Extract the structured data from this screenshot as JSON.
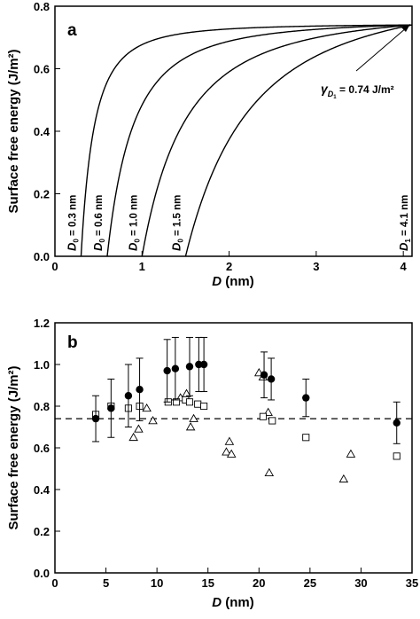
{
  "chart_data": [
    {
      "type": "line",
      "panel_label": "a",
      "xlabel": "D (nm)",
      "xlabel_var": "D",
      "xlabel_unit": " (nm)",
      "ylabel": "Surface free energy (J/m²)",
      "xlim": [
        0,
        4.1
      ],
      "ylim": [
        0,
        0.8
      ],
      "xticks": [
        0,
        1,
        2,
        3,
        4
      ],
      "yticks": [
        0.0,
        0.2,
        0.4,
        0.6,
        0.8
      ],
      "ytick_labels": [
        "0.0",
        "0.2",
        "0.4",
        "0.6",
        "0.8"
      ],
      "grid": false,
      "model": "y = 0.74 * (1 - (D0/D)^2) / (1 - (D0/4.1)^2)",
      "gamma_D1": 0.74,
      "D1": 4.1,
      "series": [
        {
          "D0": 0.3,
          "label_sub": "0",
          "label_text": " = 0.3 nm"
        },
        {
          "D0": 0.6,
          "label_sub": "0",
          "label_text": " = 0.6 nm"
        },
        {
          "D0": 1.0,
          "label_sub": "0",
          "label_text": " = 1.0 nm"
        },
        {
          "D0": 1.5,
          "label_sub": "0",
          "label_text": " = 1.5 nm"
        }
      ],
      "annotations": {
        "gamma_label": " = 0.74 J/m²",
        "gamma_symbol": "γ",
        "gamma_sub": "D",
        "gamma_subsub": "1",
        "d1_label_sub": "1",
        "d1_label_text": " = 4.1 nm"
      }
    },
    {
      "type": "scatter",
      "panel_label": "b",
      "xlabel": "D (nm)",
      "xlabel_var": "D",
      "xlabel_unit": " (nm)",
      "ylabel": "Surface free energy (J/m²)",
      "xlim": [
        0,
        35
      ],
      "ylim": [
        0.0,
        1.2
      ],
      "xticks": [
        0,
        5,
        10,
        15,
        20,
        25,
        30,
        35
      ],
      "xtick_labels": [
        "0",
        "5",
        "10",
        "15",
        "20",
        "25",
        "30",
        "35"
      ],
      "yticks": [
        0.0,
        0.2,
        0.4,
        0.6,
        0.8,
        1.0,
        1.2
      ],
      "ytick_labels": [
        "0.0",
        "0.2",
        "0.4",
        "0.6",
        "0.8",
        "1.0",
        "1.2"
      ],
      "grid": false,
      "reference_line_y": 0.74,
      "series": [
        {
          "marker": "filled-circle",
          "points": [
            {
              "x": 4.0,
              "y": 0.74,
              "err": 0.11
            },
            {
              "x": 5.5,
              "y": 0.79,
              "err": 0.14
            },
            {
              "x": 7.2,
              "y": 0.85,
              "err": 0.15
            },
            {
              "x": 8.3,
              "y": 0.88,
              "err": 0.15
            },
            {
              "x": 11.0,
              "y": 0.97,
              "err": 0.15
            },
            {
              "x": 11.8,
              "y": 0.98,
              "err": 0.15
            },
            {
              "x": 13.2,
              "y": 0.99,
              "err": 0.14
            },
            {
              "x": 14.1,
              "y": 1.0,
              "err": 0.13
            },
            {
              "x": 14.6,
              "y": 1.0,
              "err": 0.13
            },
            {
              "x": 20.5,
              "y": 0.95,
              "err": 0.11
            },
            {
              "x": 21.2,
              "y": 0.93,
              "err": 0.1
            },
            {
              "x": 24.6,
              "y": 0.84,
              "err": 0.09
            },
            {
              "x": 33.5,
              "y": 0.72,
              "err": 0.1
            }
          ]
        },
        {
          "marker": "open-square",
          "points": [
            {
              "x": 4.0,
              "y": 0.76
            },
            {
              "x": 5.5,
              "y": 0.8
            },
            {
              "x": 7.2,
              "y": 0.79
            },
            {
              "x": 8.3,
              "y": 0.8
            },
            {
              "x": 11.1,
              "y": 0.82
            },
            {
              "x": 11.9,
              "y": 0.82
            },
            {
              "x": 12.8,
              "y": 0.83
            },
            {
              "x": 13.2,
              "y": 0.82
            },
            {
              "x": 14.0,
              "y": 0.81
            },
            {
              "x": 14.6,
              "y": 0.8
            },
            {
              "x": 20.4,
              "y": 0.75
            },
            {
              "x": 21.3,
              "y": 0.73
            },
            {
              "x": 24.6,
              "y": 0.65
            },
            {
              "x": 33.5,
              "y": 0.56
            }
          ]
        },
        {
          "marker": "open-triangle",
          "points": [
            {
              "x": 7.7,
              "y": 0.65
            },
            {
              "x": 8.2,
              "y": 0.69
            },
            {
              "x": 9.0,
              "y": 0.79
            },
            {
              "x": 9.6,
              "y": 0.73
            },
            {
              "x": 12.3,
              "y": 0.84
            },
            {
              "x": 12.9,
              "y": 0.86
            },
            {
              "x": 13.3,
              "y": 0.7
            },
            {
              "x": 13.6,
              "y": 0.74
            },
            {
              "x": 16.8,
              "y": 0.58
            },
            {
              "x": 17.1,
              "y": 0.63
            },
            {
              "x": 17.3,
              "y": 0.57
            },
            {
              "x": 20.0,
              "y": 0.96
            },
            {
              "x": 20.4,
              "y": 0.94
            },
            {
              "x": 20.9,
              "y": 0.77
            },
            {
              "x": 21.0,
              "y": 0.48
            },
            {
              "x": 28.3,
              "y": 0.45
            },
            {
              "x": 29.0,
              "y": 0.57
            }
          ]
        }
      ]
    }
  ]
}
